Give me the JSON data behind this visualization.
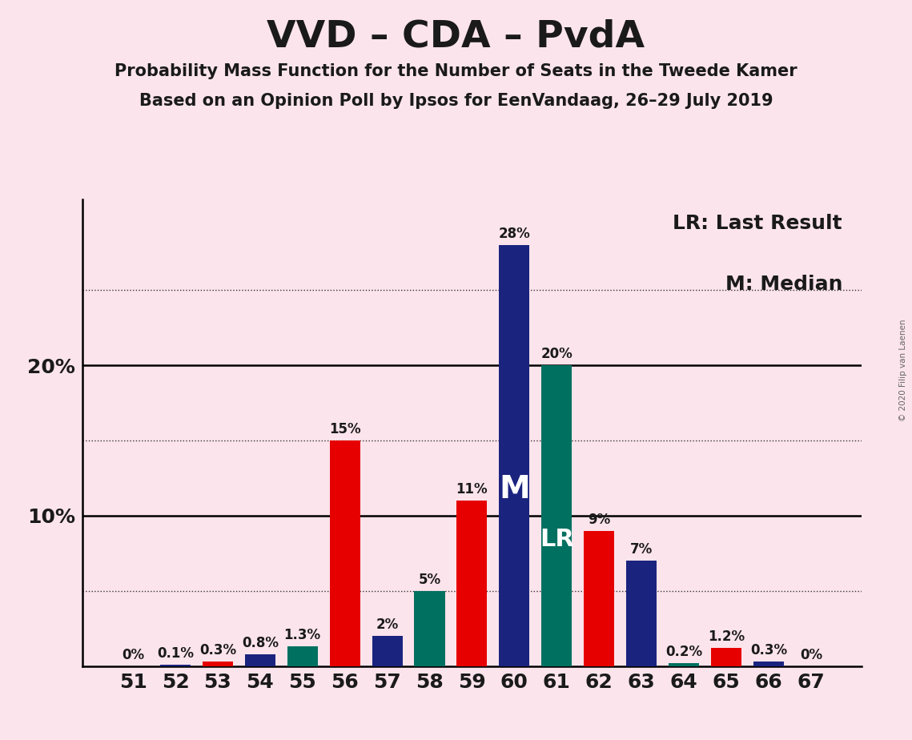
{
  "title": "VVD – CDA – PvdA",
  "subtitle1": "Probability Mass Function for the Number of Seats in the Tweede Kamer",
  "subtitle2": "Based on an Opinion Poll by Ipsos for EenVandaag, 26–29 July 2019",
  "copyright": "© 2020 Filip van Laenen",
  "legend_lr": "LR: Last Result",
  "legend_m": "M: Median",
  "seats": [
    51,
    52,
    53,
    54,
    55,
    56,
    57,
    58,
    59,
    60,
    61,
    62,
    63,
    64,
    65,
    66,
    67
  ],
  "values": [
    0.0,
    0.1,
    0.3,
    0.8,
    1.3,
    15.0,
    2.0,
    5.0,
    11.0,
    28.0,
    20.0,
    9.0,
    7.0,
    0.2,
    1.2,
    0.3,
    0.0
  ],
  "labels": [
    "0%",
    "0.1%",
    "0.3%",
    "0.8%",
    "1.3%",
    "15%",
    "2%",
    "5%",
    "11%",
    "28%",
    "20%",
    "9%",
    "7%",
    "0.2%",
    "1.2%",
    "0.3%",
    "0%"
  ],
  "colors": [
    "#e60000",
    "#1a237e",
    "#e60000",
    "#1a237e",
    "#007060",
    "#e60000",
    "#1a237e",
    "#007060",
    "#e60000",
    "#1a237e",
    "#007060",
    "#e60000",
    "#1a237e",
    "#007060",
    "#e60000",
    "#1a237e",
    "#e60000"
  ],
  "background_color": "#fce4ec",
  "median_seat": 60,
  "lr_seat": 61,
  "ytick_positions": [
    10,
    20
  ],
  "ytick_labels": [
    "10%",
    "20%"
  ],
  "ymax": 31,
  "solid_lines": [
    10,
    20
  ],
  "dotted_lines": [
    5,
    15,
    25
  ],
  "bar_width": 0.72,
  "title_fontsize": 34,
  "subtitle_fontsize": 15,
  "legend_fontsize": 18,
  "bar_label_fontsize": 12,
  "tick_fontsize": 18,
  "m_fontsize": 28,
  "lr_fontsize": 22
}
